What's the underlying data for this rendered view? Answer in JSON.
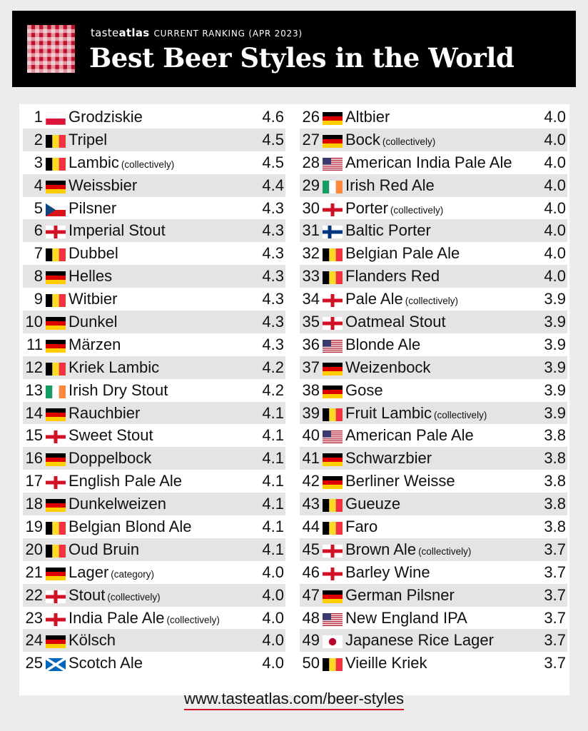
{
  "header": {
    "brand_prefix": "taste",
    "brand_bold": "atlas",
    "subtitle": "CURRENT RANKING (APR 2023)",
    "title": "Best Beer Styles in the World"
  },
  "colors": {
    "brand_red": "#c0102a",
    "header_bg": "#000000",
    "row_stripe": "#e4e4e4"
  },
  "left": [
    {
      "rank": "1",
      "flag": "poland-flag-icon",
      "name": "Grodziskie",
      "note": "",
      "score": "4.6"
    },
    {
      "rank": "2",
      "flag": "belgium-flag-icon",
      "name": "Tripel",
      "note": "",
      "score": "4.5"
    },
    {
      "rank": "3",
      "flag": "belgium-flag-icon",
      "name": "Lambic",
      "note": "(collectively)",
      "score": "4.5"
    },
    {
      "rank": "4",
      "flag": "germany-flag-icon",
      "name": "Weissbier",
      "note": "",
      "score": "4.4"
    },
    {
      "rank": "5",
      "flag": "czech-flag-icon",
      "name": "Pilsner",
      "note": "",
      "score": "4.3"
    },
    {
      "rank": "6",
      "flag": "england-flag-icon",
      "name": "Imperial Stout",
      "note": "",
      "score": "4.3"
    },
    {
      "rank": "7",
      "flag": "belgium-flag-icon",
      "name": "Dubbel",
      "note": "",
      "score": "4.3"
    },
    {
      "rank": "8",
      "flag": "germany-flag-icon",
      "name": "Helles",
      "note": "",
      "score": "4.3"
    },
    {
      "rank": "9",
      "flag": "belgium-flag-icon",
      "name": "Witbier",
      "note": "",
      "score": "4.3"
    },
    {
      "rank": "10",
      "flag": "germany-flag-icon",
      "name": "Dunkel",
      "note": "",
      "score": "4.3"
    },
    {
      "rank": "11",
      "flag": "germany-flag-icon",
      "name": "Märzen",
      "note": "",
      "score": "4.3"
    },
    {
      "rank": "12",
      "flag": "belgium-flag-icon",
      "name": "Kriek Lambic",
      "note": "",
      "score": "4.2"
    },
    {
      "rank": "13",
      "flag": "ireland-flag-icon",
      "name": "Irish Dry Stout",
      "note": "",
      "score": "4.2"
    },
    {
      "rank": "14",
      "flag": "germany-flag-icon",
      "name": "Rauchbier",
      "note": "",
      "score": "4.1"
    },
    {
      "rank": "15",
      "flag": "england-flag-icon",
      "name": "Sweet Stout",
      "note": "",
      "score": "4.1"
    },
    {
      "rank": "16",
      "flag": "germany-flag-icon",
      "name": "Doppelbock",
      "note": "",
      "score": "4.1"
    },
    {
      "rank": "17",
      "flag": "england-flag-icon",
      "name": "English Pale Ale",
      "note": "",
      "score": "4.1"
    },
    {
      "rank": "18",
      "flag": "germany-flag-icon",
      "name": "Dunkelweizen",
      "note": "",
      "score": "4.1"
    },
    {
      "rank": "19",
      "flag": "belgium-flag-icon",
      "name": "Belgian Blond Ale",
      "note": "",
      "score": "4.1"
    },
    {
      "rank": "20",
      "flag": "belgium-flag-icon",
      "name": "Oud Bruin",
      "note": "",
      "score": "4.1"
    },
    {
      "rank": "21",
      "flag": "germany-flag-icon",
      "name": "Lager",
      "note": "(category)",
      "score": "4.0"
    },
    {
      "rank": "22",
      "flag": "england-flag-icon",
      "name": "Stout",
      "note": "(collectively)",
      "score": "4.0"
    },
    {
      "rank": "23",
      "flag": "england-flag-icon",
      "name": "India Pale Ale",
      "note": "(collectively)",
      "score": "4.0"
    },
    {
      "rank": "24",
      "flag": "germany-flag-icon",
      "name": "Kölsch",
      "note": "",
      "score": "4.0"
    },
    {
      "rank": "25",
      "flag": "scotland-flag-icon",
      "name": "Scotch Ale",
      "note": "",
      "score": "4.0"
    }
  ],
  "right": [
    {
      "rank": "26",
      "flag": "germany-flag-icon",
      "name": "Altbier",
      "note": "",
      "score": "4.0"
    },
    {
      "rank": "27",
      "flag": "germany-flag-icon",
      "name": "Bock",
      "note": "(collectively)",
      "score": "4.0"
    },
    {
      "rank": "28",
      "flag": "usa-flag-icon",
      "name": "American India Pale Ale",
      "note": "",
      "score": "4.0"
    },
    {
      "rank": "29",
      "flag": "ireland-flag-icon",
      "name": "Irish Red Ale",
      "note": "",
      "score": "4.0"
    },
    {
      "rank": "30",
      "flag": "england-flag-icon",
      "name": "Porter",
      "note": "(collectively)",
      "score": "4.0"
    },
    {
      "rank": "31",
      "flag": "finland-flag-icon",
      "name": "Baltic Porter",
      "note": "",
      "score": "4.0"
    },
    {
      "rank": "32",
      "flag": "belgium-flag-icon",
      "name": "Belgian Pale Ale",
      "note": "",
      "score": "4.0"
    },
    {
      "rank": "33",
      "flag": "belgium-flag-icon",
      "name": "Flanders Red",
      "note": "",
      "score": "4.0"
    },
    {
      "rank": "34",
      "flag": "england-flag-icon",
      "name": "Pale Ale",
      "note": "(collectively)",
      "score": "3.9"
    },
    {
      "rank": "35",
      "flag": "england-flag-icon",
      "name": "Oatmeal Stout",
      "note": "",
      "score": "3.9"
    },
    {
      "rank": "36",
      "flag": "usa-flag-icon",
      "name": "Blonde Ale",
      "note": "",
      "score": "3.9"
    },
    {
      "rank": "37",
      "flag": "germany-flag-icon",
      "name": "Weizenbock",
      "note": "",
      "score": "3.9"
    },
    {
      "rank": "38",
      "flag": "germany-flag-icon",
      "name": "Gose",
      "note": "",
      "score": "3.9"
    },
    {
      "rank": "39",
      "flag": "belgium-flag-icon",
      "name": "Fruit Lambic",
      "note": "(collectively)",
      "score": "3.9"
    },
    {
      "rank": "40",
      "flag": "usa-flag-icon",
      "name": "American Pale Ale",
      "note": "",
      "score": "3.8"
    },
    {
      "rank": "41",
      "flag": "germany-flag-icon",
      "name": "Schwarzbier",
      "note": "",
      "score": "3.8"
    },
    {
      "rank": "42",
      "flag": "germany-flag-icon",
      "name": "Berliner Weisse",
      "note": "",
      "score": "3.8"
    },
    {
      "rank": "43",
      "flag": "belgium-flag-icon",
      "name": "Gueuze",
      "note": "",
      "score": "3.8"
    },
    {
      "rank": "44",
      "flag": "belgium-flag-icon",
      "name": "Faro",
      "note": "",
      "score": "3.8"
    },
    {
      "rank": "45",
      "flag": "england-flag-icon",
      "name": "Brown Ale",
      "note": "(collectively)",
      "score": "3.7"
    },
    {
      "rank": "46",
      "flag": "england-flag-icon",
      "name": "Barley Wine",
      "note": "",
      "score": "3.7"
    },
    {
      "rank": "47",
      "flag": "germany-flag-icon",
      "name": "German Pilsner",
      "note": "",
      "score": "3.7"
    },
    {
      "rank": "48",
      "flag": "usa-flag-icon",
      "name": "New England IPA",
      "note": "",
      "score": "3.7"
    },
    {
      "rank": "49",
      "flag": "japan-flag-icon",
      "name": "Japanese Rice Lager",
      "note": "",
      "score": "3.7"
    },
    {
      "rank": "50",
      "flag": "belgium-flag-icon",
      "name": "Vieille Kriek",
      "note": "",
      "score": "3.7"
    }
  ],
  "footer": {
    "url": "www.tasteatlas.com/beer-styles"
  }
}
